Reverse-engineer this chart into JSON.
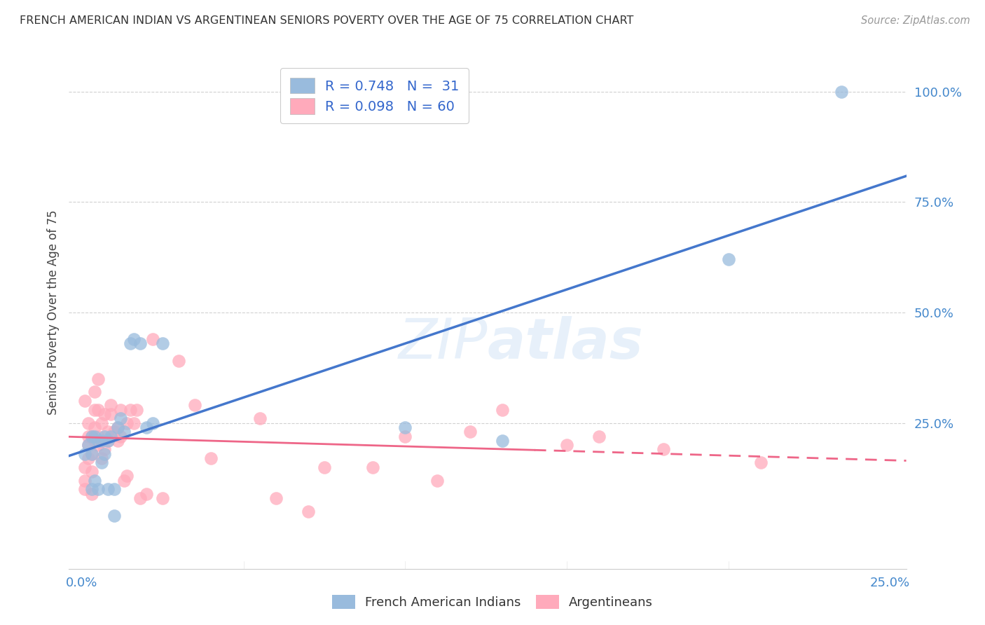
{
  "title": "FRENCH AMERICAN INDIAN VS ARGENTINEAN SENIORS POVERTY OVER THE AGE OF 75 CORRELATION CHART",
  "source": "Source: ZipAtlas.com",
  "ylabel": "Seniors Poverty Over the Age of 75",
  "xlim": [
    -0.004,
    0.255
  ],
  "ylim": [
    -0.08,
    1.08
  ],
  "blue_color": "#99BBDD",
  "pink_color": "#FFAABB",
  "line_blue": "#4477CC",
  "line_pink": "#EE6688",
  "watermark": "ZIPatlas",
  "french_american_indian_x": [
    0.001,
    0.002,
    0.003,
    0.003,
    0.003,
    0.004,
    0.004,
    0.005,
    0.005,
    0.006,
    0.006,
    0.007,
    0.007,
    0.008,
    0.008,
    0.009,
    0.01,
    0.01,
    0.011,
    0.012,
    0.013,
    0.015,
    0.016,
    0.018,
    0.02,
    0.022,
    0.025,
    0.1,
    0.13,
    0.2,
    0.235
  ],
  "french_american_indian_y": [
    0.18,
    0.2,
    0.1,
    0.18,
    0.22,
    0.12,
    0.22,
    0.1,
    0.21,
    0.16,
    0.21,
    0.18,
    0.22,
    0.1,
    0.21,
    0.22,
    0.04,
    0.1,
    0.24,
    0.26,
    0.23,
    0.43,
    0.44,
    0.43,
    0.24,
    0.25,
    0.43,
    0.24,
    0.21,
    0.62,
    1.0
  ],
  "argentinean_x": [
    0.001,
    0.001,
    0.001,
    0.001,
    0.002,
    0.002,
    0.002,
    0.002,
    0.003,
    0.003,
    0.003,
    0.003,
    0.004,
    0.004,
    0.004,
    0.004,
    0.005,
    0.005,
    0.005,
    0.005,
    0.006,
    0.006,
    0.006,
    0.007,
    0.007,
    0.008,
    0.008,
    0.009,
    0.009,
    0.01,
    0.011,
    0.011,
    0.012,
    0.012,
    0.013,
    0.014,
    0.014,
    0.015,
    0.016,
    0.017,
    0.018,
    0.02,
    0.022,
    0.025,
    0.03,
    0.035,
    0.04,
    0.055,
    0.06,
    0.07,
    0.075,
    0.09,
    0.1,
    0.11,
    0.12,
    0.13,
    0.15,
    0.16,
    0.18,
    0.21
  ],
  "argentinean_y": [
    0.15,
    0.12,
    0.1,
    0.3,
    0.17,
    0.2,
    0.25,
    0.22,
    0.14,
    0.18,
    0.22,
    0.09,
    0.21,
    0.24,
    0.28,
    0.32,
    0.2,
    0.35,
    0.22,
    0.28,
    0.17,
    0.21,
    0.25,
    0.19,
    0.27,
    0.21,
    0.23,
    0.27,
    0.29,
    0.23,
    0.24,
    0.21,
    0.22,
    0.28,
    0.12,
    0.13,
    0.25,
    0.28,
    0.25,
    0.28,
    0.08,
    0.09,
    0.44,
    0.08,
    0.39,
    0.29,
    0.17,
    0.26,
    0.08,
    0.05,
    0.15,
    0.15,
    0.22,
    0.12,
    0.23,
    0.28,
    0.2,
    0.22,
    0.19,
    0.16
  ]
}
